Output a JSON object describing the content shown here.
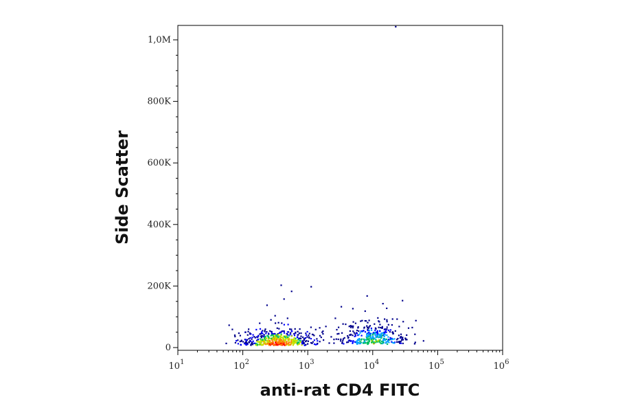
{
  "chart_data": {
    "type": "scatter",
    "title": "",
    "xlabel": "anti-rat CD4 FITC",
    "ylabel": "Side Scatter",
    "x_scale": "log",
    "xlim": [
      10,
      1000000
    ],
    "ylim": [
      0,
      1050000
    ],
    "x_ticks": [
      {
        "value": 10,
        "base": "10",
        "exp": "1"
      },
      {
        "value": 100,
        "base": "10",
        "exp": "2"
      },
      {
        "value": 1000,
        "base": "10",
        "exp": "3"
      },
      {
        "value": 10000,
        "base": "10",
        "exp": "4"
      },
      {
        "value": 100000,
        "base": "10",
        "exp": "5"
      },
      {
        "value": 1000000,
        "base": "10",
        "exp": "6"
      }
    ],
    "y_ticks": [
      {
        "value": 0,
        "label": "0"
      },
      {
        "value": 200000,
        "label": "200K"
      },
      {
        "value": 400000,
        "label": "400K"
      },
      {
        "value": 600000,
        "label": "600K"
      },
      {
        "value": 800000,
        "label": "800K"
      },
      {
        "value": 1000000,
        "label": "1,0M"
      }
    ],
    "grid": false,
    "legend": "none",
    "density_colors": [
      "#00008b",
      "#0000ff",
      "#00a0ff",
      "#00c060",
      "#c8e000",
      "#ff8000",
      "#ff0000"
    ],
    "populations": [
      {
        "name": "",
        "x_center": 350,
        "y_center": 28000,
        "count": 520,
        "density": "high"
      },
      {
        "name": "",
        "x_center": 10000,
        "y_center": 38000,
        "count": 360,
        "density": "medium"
      }
    ],
    "points": [
      [
        380,
        205000
      ],
      [
        420,
        160000
      ],
      [
        1100,
        200000
      ],
      [
        550,
        185000
      ],
      [
        230,
        140000
      ],
      [
        8000,
        170000
      ],
      [
        28000,
        155000
      ],
      [
        14000,
        145000
      ],
      [
        3200,
        135000
      ],
      [
        16000,
        130000
      ],
      [
        60,
        75000
      ],
      [
        45000,
        90000
      ],
      [
        130,
        10000
      ],
      [
        110,
        20000
      ],
      [
        22000,
        1045000
      ]
    ]
  }
}
